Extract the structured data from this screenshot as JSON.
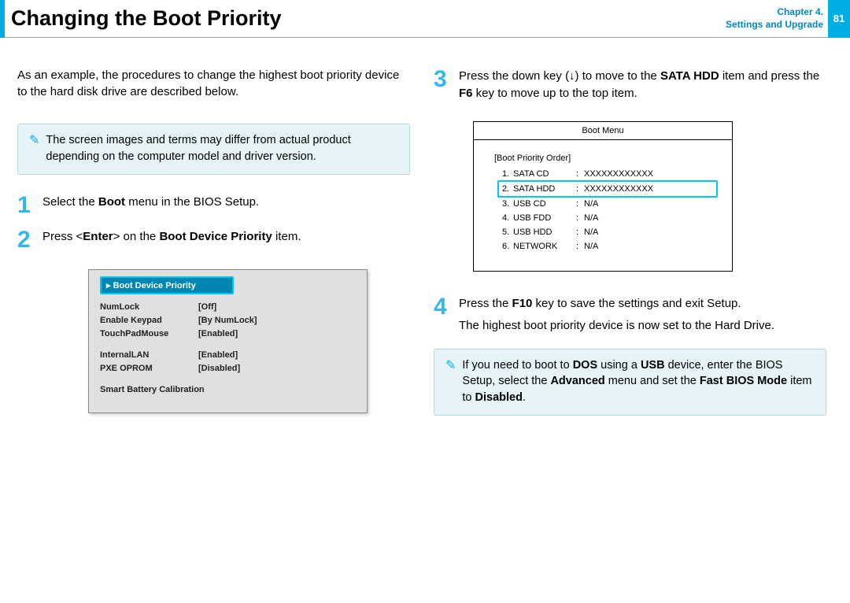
{
  "header": {
    "title": "Changing the Boot Priority",
    "chapter_line1": "Chapter 4.",
    "chapter_line2": "Settings and Upgrade",
    "page_number": "81"
  },
  "intro": "As an example, the procedures to change the highest boot priority device to the hard disk drive are described below.",
  "note1": "The screen images and terms may differ from actual product depending on the computer model and driver version.",
  "step1": {
    "num": "1",
    "pre": "Select the ",
    "bold": "Boot",
    "post": " menu in the BIOS Setup."
  },
  "step2": {
    "num": "2",
    "t1": "Press <",
    "b1": "Enter",
    "t2": "> on the ",
    "b2": "Boot Device Priority",
    "t3": " item."
  },
  "step3": {
    "num": "3",
    "t1": "Press the down key (↓) to move to the ",
    "b1": "SATA HDD",
    "t2": " item and press the ",
    "b2": "F6",
    "t3": " key to move up to the top item."
  },
  "step4": {
    "num": "4",
    "t1": "Press the ",
    "b1": "F10",
    "t2": " key to save the settings and exit Setup.",
    "line2": "The highest boot priority device is now set to the Hard Drive."
  },
  "note2": {
    "t1": "If you need to boot to ",
    "b1": "DOS",
    "t2": " using a ",
    "b2": "USB",
    "t3": " device, enter the BIOS Setup, select the ",
    "b3": "Advanced",
    "t4": " menu and set the ",
    "b4": "Fast BIOS Mode",
    "t5": " item to ",
    "b5": "Disabled",
    "t6": "."
  },
  "bios": {
    "highlight_label": "▸ Boot Device Priority",
    "rows": [
      {
        "k": "NumLock",
        "v": "[Off]"
      },
      {
        "k": "Enable Keypad",
        "v": "[By NumLock]"
      },
      {
        "k": "TouchPadMouse",
        "v": "[Enabled]"
      }
    ],
    "rows2": [
      {
        "k": "InternalLAN",
        "v": "[Enabled]"
      },
      {
        "k": "PXE OPROM",
        "v": "[Disabled]"
      }
    ],
    "footer": "Smart Battery Calibration"
  },
  "bootmenu": {
    "title": "Boot Menu",
    "section": "[Boot Priority Order]",
    "items": [
      {
        "idx": "1.",
        "name": "SATA CD",
        "val": "XXXXXXXXXXXX",
        "hl": false
      },
      {
        "idx": "2.",
        "name": "SATA HDD",
        "val": "XXXXXXXXXXXX",
        "hl": true
      },
      {
        "idx": "3.",
        "name": "USB CD",
        "val": "N/A",
        "hl": false
      },
      {
        "idx": "4.",
        "name": "USB FDD",
        "val": "N/A",
        "hl": false
      },
      {
        "idx": "5.",
        "name": "USB HDD",
        "val": "N/A",
        "hl": false
      },
      {
        "idx": "6.",
        "name": "NETWORK",
        "val": "N/A",
        "hl": false
      }
    ]
  },
  "colors": {
    "accent": "#00aee6",
    "step_num": "#35b8e8",
    "note_bg": "#e7f4f7",
    "bios_bg": "#e0e0e0",
    "highlight_border": "#00c8f0"
  }
}
